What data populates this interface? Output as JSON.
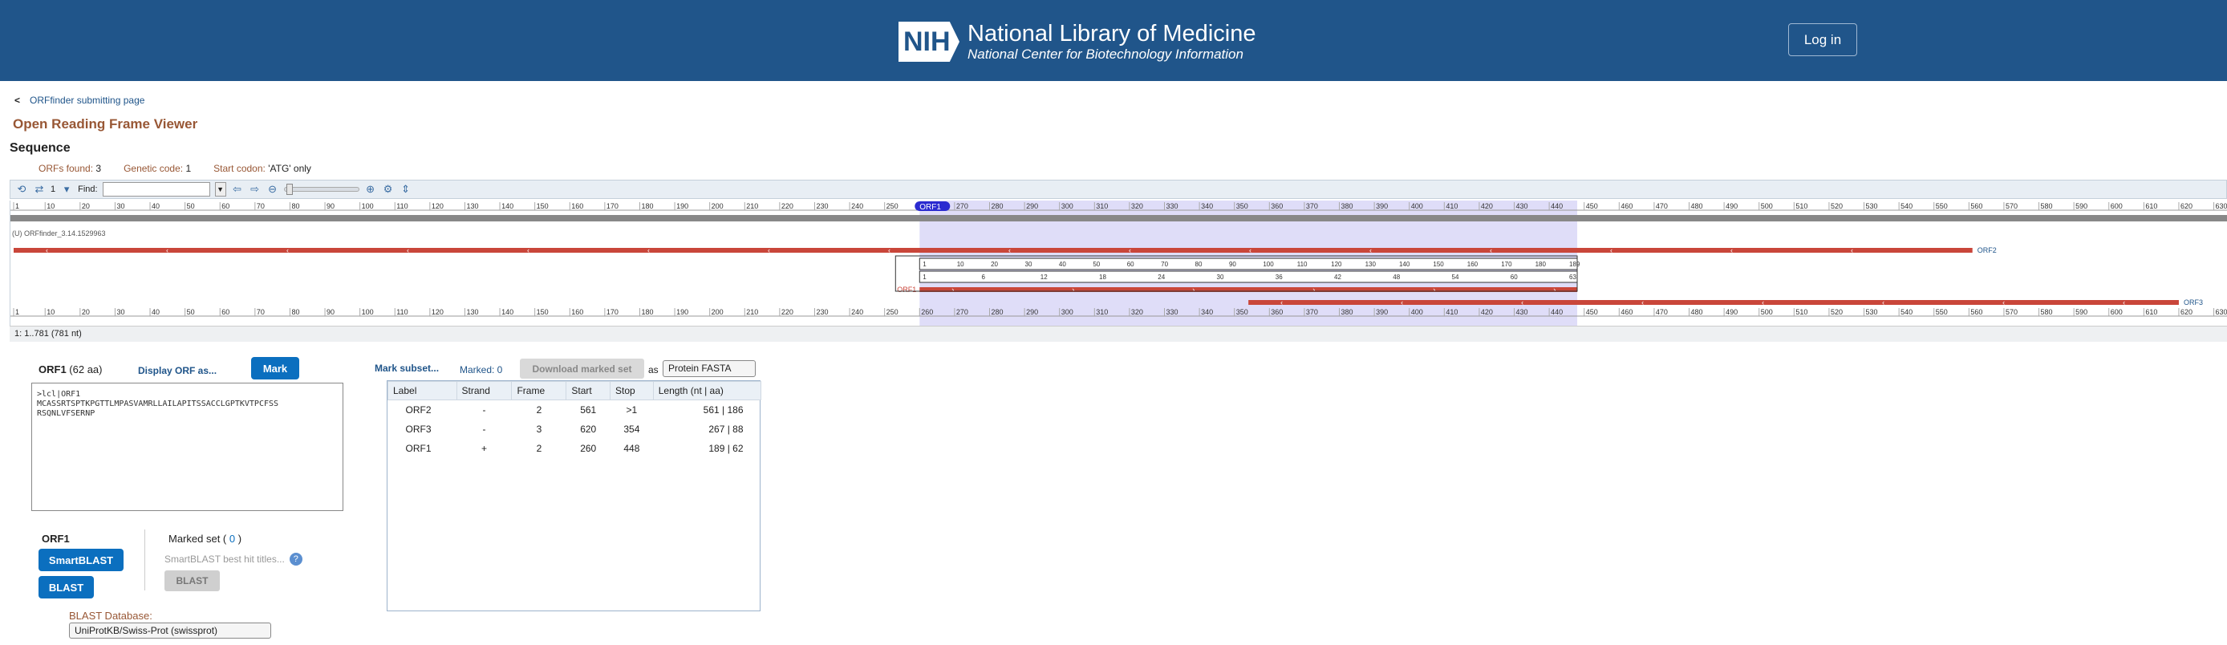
{
  "header": {
    "logo_text": "NIH",
    "title": "National Library of Medicine",
    "subtitle": "National Center for Biotechnology Information",
    "login_label": "Log in"
  },
  "nav": {
    "back_chevron": "<",
    "back_link": "ORFfinder submitting page"
  },
  "page": {
    "title": "Open Reading Frame Viewer",
    "section": "Sequence"
  },
  "meta": {
    "orfs_label": "ORFs found:",
    "orfs_value": "3",
    "gc_label": "Genetic code:",
    "gc_value": "1",
    "start_label": "Start codon:",
    "start_value": "'ATG' only"
  },
  "toolbar": {
    "find_label": "Find:",
    "tracks_count": "1"
  },
  "graph": {
    "track_label": "(U) ORFfinder_3.14.1529963",
    "ruler_min": 1,
    "ruler_max": 781,
    "visible_max": 634,
    "tick_step": 10,
    "selected_label": "ORF1",
    "orfs": [
      {
        "name": "ORF2",
        "strand": "-",
        "start": 1,
        "end": 561
      },
      {
        "name": "ORF1",
        "strand": "+",
        "start": 260,
        "end": 448
      },
      {
        "name": "ORF3",
        "strand": "-",
        "start": 354,
        "end": 620
      }
    ],
    "inner_scale_top": [
      "1",
      "10",
      "20",
      "30",
      "40",
      "50",
      "60",
      "70",
      "80",
      "90",
      "100",
      "110",
      "120",
      "130",
      "140",
      "150",
      "160",
      "170",
      "180",
      "189"
    ],
    "inner_scale_bottom": [
      "1",
      "6",
      "12",
      "18",
      "24",
      "30",
      "36",
      "42",
      "48",
      "54",
      "60",
      "63"
    ]
  },
  "status_text": "1: 1..781 (781 nt)",
  "orf_panel": {
    "name": "ORF1",
    "length": "(62 aa)",
    "display_link": "Display ORF as...",
    "mark_label": "Mark",
    "fasta": ">lcl|ORF1\nMCASSRTSPTKPGTTLMPASVAMRLLAILAPITSSACCLGPTKVTPCFSS\nRSQNLVFSERNP"
  },
  "marking": {
    "subset_link": "Mark subset...",
    "marked_text": "Marked: 0",
    "download_label": "Download marked set",
    "as_label": "as",
    "format": "Protein FASTA"
  },
  "table": {
    "headers": [
      "Label",
      "Strand",
      "Frame",
      "Start",
      "Stop",
      "Length (nt | aa)"
    ],
    "rows": [
      [
        "ORF2",
        "-",
        "2",
        "561",
        ">1",
        "561 | 186"
      ],
      [
        "ORF3",
        "-",
        "3",
        "620",
        "354",
        "267 | 88"
      ],
      [
        "ORF1",
        "+",
        "2",
        "260",
        "448",
        "189 | 62"
      ]
    ]
  },
  "blast": {
    "title": "ORF1",
    "smart_label": "SmartBLAST",
    "blast_label": "BLAST",
    "marked_set_label": "Marked set (",
    "marked_set_count": "0",
    "marked_set_close": ")",
    "smart_titles": "SmartBLAST best hit titles...",
    "blast2_label": "BLAST",
    "db_label": "BLAST Database:",
    "db_value": "UniProtKB/Swiss-Prot (swissprot)"
  },
  "colors": {
    "header_bg": "#20558a",
    "orf_red": "#c9463a",
    "selection": "#b9b4f0",
    "accent_brown": "#985735",
    "button_blue": "#0b6fbf"
  }
}
